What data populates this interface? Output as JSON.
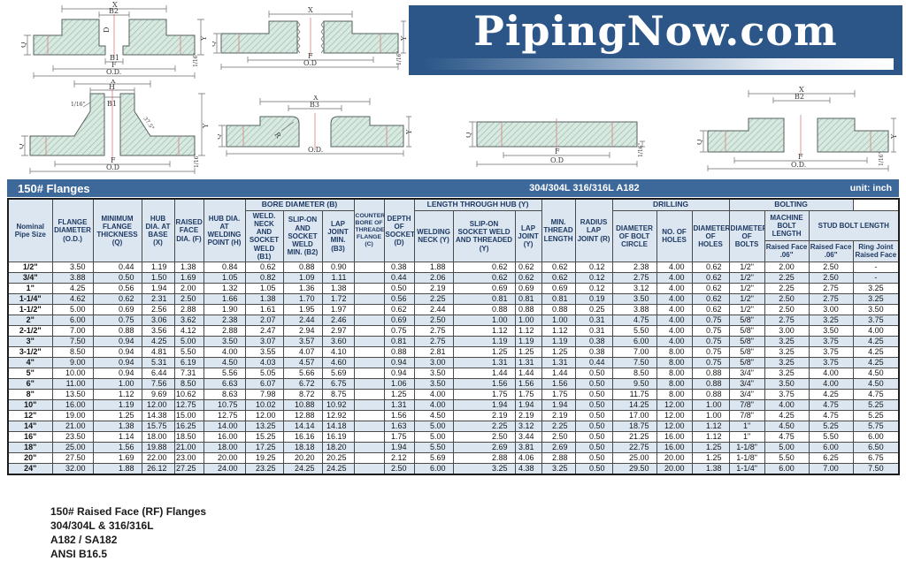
{
  "banner": {
    "text": "PipingNow.com"
  },
  "section_bar": {
    "title": "150# Flanges",
    "material": "304/304L  316/316L  A182",
    "unit": "unit: inch"
  },
  "drawings": {
    "socket_weld": {
      "labels": [
        "X",
        "B2",
        "D",
        "Q",
        "B1",
        "F",
        "O.D.",
        "Y",
        "1/16\""
      ]
    },
    "threaded": {
      "labels": [
        "Q",
        "X",
        "F",
        "O.D",
        "Y",
        "1/16\""
      ]
    },
    "weld_neck": {
      "labels": [
        "X",
        "H",
        "B1",
        "1/16\"",
        "37.5°",
        "Q",
        "F",
        "O.D",
        "Y",
        "1/16\""
      ]
    },
    "lap_joint": {
      "labels": [
        "X",
        "B3",
        "Q",
        "R",
        "O.D.",
        "Y"
      ]
    },
    "blind": {
      "labels": [
        "Q",
        "F",
        "O.D",
        "1/16\""
      ]
    },
    "slip_on": {
      "labels": [
        "X",
        "B2",
        "Q",
        "F",
        "O.D.",
        "Y",
        "1/16\""
      ]
    }
  },
  "table": {
    "h": {
      "nps": "Nominal Pipe Size",
      "od": "FLANGE DIAMETER (O.D.)",
      "q": "MINIMUM FLANGE THICKNESS (Q)",
      "x": "HUB DIA. AT BASE (X)",
      "f": "RAISED FACE DIA. (F)",
      "hh": "HUB DIA. AT WELDING POINT (H)",
      "bore_group": "BORE DIAMETER (B)",
      "b1": "WELD. NECK AND SOCKET WELD (B1)",
      "b2": "SLIP-ON AND SOCKET WELD MIN. (B2)",
      "b3": "LAP JOINT MIN. (B3)",
      "c": "COUNTER BORE OF THREADED FLANGE (C)",
      "d": "DEPTH OF SOCKET (D)",
      "hub_group": "LENGTH THROUGH HUB (Y)",
      "ywn": "WELDING NECK (Y)",
      "yso": "SLIP-ON SOCKET WELD AND THREADED (Y)",
      "ylj": "LAP JOINT (Y)",
      "mtl": "MIN. THREAD LENGTH",
      "r": "RADIUS LAP JOINT (R)",
      "drilling_group": "DRILLING",
      "bc": "DIAMETER OF BOLT CIRCLE",
      "nh": "NO. OF HOLES",
      "dh": "DIAMETER OF HOLES",
      "bolting_group": "BOLTING",
      "db": "DIAMETER OF BOLTS",
      "mbl": "MACHINE BOLT LENGTH",
      "sbl": "STUD BOLT LENGTH",
      "mbl_rf": "Raised Face .06\"",
      "sbl_rf": "Raised Face .06\"",
      "sbl_rj": "Ring Joint Raised Face"
    },
    "rows": [
      [
        "1/2\"",
        "3.50",
        "0.44",
        "1.19",
        "1.38",
        "0.84",
        "0.62",
        "0.88",
        "0.90",
        "",
        "0.38",
        "1.88",
        "0.62",
        "0.62",
        "0.62",
        "0.12",
        "2.38",
        "4.00",
        "0.62",
        "1/2\"",
        "2.00",
        "2.50",
        "-"
      ],
      [
        "3/4\"",
        "3.88",
        "0.50",
        "1.50",
        "1.69",
        "1.05",
        "0.82",
        "1.09",
        "1.11",
        "",
        "0.44",
        "2.06",
        "0.62",
        "0.62",
        "0.62",
        "0.12",
        "2.75",
        "4.00",
        "0.62",
        "1/2\"",
        "2.25",
        "2.50",
        "-"
      ],
      [
        "1\"",
        "4.25",
        "0.56",
        "1.94",
        "2.00",
        "1.32",
        "1.05",
        "1.36",
        "1.38",
        "",
        "0.50",
        "2.19",
        "0.69",
        "0.69",
        "0.69",
        "0.12",
        "3.12",
        "4.00",
        "0.62",
        "1/2\"",
        "2.25",
        "2.75",
        "3.25"
      ],
      [
        "1-1/4\"",
        "4.62",
        "0.62",
        "2.31",
        "2.50",
        "1.66",
        "1.38",
        "1.70",
        "1.72",
        "",
        "0.56",
        "2.25",
        "0.81",
        "0.81",
        "0.81",
        "0.19",
        "3.50",
        "4.00",
        "0.62",
        "1/2\"",
        "2.50",
        "2.75",
        "3.25"
      ],
      [
        "1-1/2\"",
        "5.00",
        "0.69",
        "2.56",
        "2.88",
        "1.90",
        "1.61",
        "1.95",
        "1.97",
        "",
        "0.62",
        "2.44",
        "0.88",
        "0.88",
        "0.88",
        "0.25",
        "3.88",
        "4.00",
        "0.62",
        "1/2\"",
        "2.50",
        "3.00",
        "3.50"
      ],
      [
        "2\"",
        "6.00",
        "0.75",
        "3.06",
        "3.62",
        "2.38",
        "2.07",
        "2.44",
        "2.46",
        "",
        "0.69",
        "2.50",
        "1.00",
        "1.00",
        "1.00",
        "0.31",
        "4.75",
        "4.00",
        "0.75",
        "5/8\"",
        "2.75",
        "3.25",
        "3.75"
      ],
      [
        "2-1/2\"",
        "7.00",
        "0.88",
        "3.56",
        "4.12",
        "2.88",
        "2.47",
        "2.94",
        "2.97",
        "",
        "0.75",
        "2.75",
        "1.12",
        "1.12",
        "1.12",
        "0.31",
        "5.50",
        "4.00",
        "0.75",
        "5/8\"",
        "3.00",
        "3.50",
        "4.00"
      ],
      [
        "3\"",
        "7.50",
        "0.94",
        "4.25",
        "5.00",
        "3.50",
        "3.07",
        "3.57",
        "3.60",
        "",
        "0.81",
        "2.75",
        "1.19",
        "1.19",
        "1.19",
        "0.38",
        "6.00",
        "4.00",
        "0.75",
        "5/8\"",
        "3.25",
        "3.75",
        "4.25"
      ],
      [
        "3-1/2\"",
        "8.50",
        "0.94",
        "4.81",
        "5.50",
        "4.00",
        "3.55",
        "4.07",
        "4.10",
        "",
        "0.88",
        "2.81",
        "1.25",
        "1.25",
        "1.25",
        "0.38",
        "7.00",
        "8.00",
        "0.75",
        "5/8\"",
        "3.25",
        "3.75",
        "4.25"
      ],
      [
        "4\"",
        "9.00",
        "0.94",
        "5.31",
        "6.19",
        "4.50",
        "4.03",
        "4.57",
        "4.60",
        "",
        "0.94",
        "3.00",
        "1.31",
        "1.31",
        "1.31",
        "0.44",
        "7.50",
        "8.00",
        "0.75",
        "5/8\"",
        "3.25",
        "3.75",
        "4.25"
      ],
      [
        "5\"",
        "10.00",
        "0.94",
        "6.44",
        "7.31",
        "5.56",
        "5.05",
        "5.66",
        "5.69",
        "",
        "0.94",
        "3.50",
        "1.44",
        "1.44",
        "1.44",
        "0.50",
        "8.50",
        "8.00",
        "0.88",
        "3/4\"",
        "3.25",
        "4.00",
        "4.50"
      ],
      [
        "6\"",
        "11.00",
        "1.00",
        "7.56",
        "8.50",
        "6.63",
        "6.07",
        "6.72",
        "6.75",
        "",
        "1.06",
        "3.50",
        "1.56",
        "1.56",
        "1.56",
        "0.50",
        "9.50",
        "8.00",
        "0.88",
        "3/4\"",
        "3.50",
        "4.00",
        "4.50"
      ],
      [
        "8\"",
        "13.50",
        "1.12",
        "9.69",
        "10.62",
        "8.63",
        "7.98",
        "8.72",
        "8.75",
        "",
        "1.25",
        "4.00",
        "1.75",
        "1.75",
        "1.75",
        "0.50",
        "11.75",
        "8.00",
        "0.88",
        "3/4\"",
        "3.75",
        "4.25",
        "4.75"
      ],
      [
        "10\"",
        "16.00",
        "1.19",
        "12.00",
        "12.75",
        "10.75",
        "10.02",
        "10.88",
        "10.92",
        "",
        "1.31",
        "4.00",
        "1.94",
        "1.94",
        "1.94",
        "0.50",
        "14.25",
        "12.00",
        "1.00",
        "7/8\"",
        "4.00",
        "4.75",
        "5.25"
      ],
      [
        "12\"",
        "19.00",
        "1.25",
        "14.38",
        "15.00",
        "12.75",
        "12.00",
        "12.88",
        "12.92",
        "",
        "1.56",
        "4.50",
        "2.19",
        "2.19",
        "2.19",
        "0.50",
        "17.00",
        "12.00",
        "1.00",
        "7/8\"",
        "4.25",
        "4.75",
        "5.25"
      ],
      [
        "14\"",
        "21.00",
        "1.38",
        "15.75",
        "16.25",
        "14.00",
        "13.25",
        "14.14",
        "14.18",
        "",
        "1.63",
        "5.00",
        "2.25",
        "3.12",
        "2.25",
        "0.50",
        "18.75",
        "12.00",
        "1.12",
        "1\"",
        "4.50",
        "5.25",
        "5.75"
      ],
      [
        "16\"",
        "23.50",
        "1.14",
        "18.00",
        "18.50",
        "16.00",
        "15.25",
        "16.16",
        "16.19",
        "",
        "1.75",
        "5.00",
        "2.50",
        "3.44",
        "2.50",
        "0.50",
        "21.25",
        "16.00",
        "1.12",
        "1\"",
        "4.75",
        "5.50",
        "6.00"
      ],
      [
        "18\"",
        "25.00",
        "1.56",
        "19.88",
        "21.00",
        "18.00",
        "17.25",
        "18.18",
        "18.20",
        "",
        "1.94",
        "5.50",
        "2.69",
        "3.81",
        "2.69",
        "0.50",
        "22.75",
        "16.00",
        "1.25",
        "1-1/8\"",
        "5.00",
        "6.00",
        "6.50"
      ],
      [
        "20\"",
        "27.50",
        "1.69",
        "22.00",
        "23.00",
        "20.00",
        "19.25",
        "20.20",
        "20.25",
        "",
        "2.12",
        "5.69",
        "2.88",
        "4.06",
        "2.88",
        "0.50",
        "25.00",
        "20.00",
        "1.25",
        "1-1/8\"",
        "5.50",
        "6.25",
        "6.75"
      ],
      [
        "24\"",
        "32.00",
        "1.88",
        "26.12",
        "27.25",
        "24.00",
        "23.25",
        "24.25",
        "24.25",
        "",
        "2.50",
        "6.00",
        "3.25",
        "4.38",
        "3.25",
        "0.50",
        "29.50",
        "20.00",
        "1.38",
        "1-1/4\"",
        "6.00",
        "7.00",
        "7.50"
      ]
    ]
  },
  "footer": {
    "lines": [
      "150# Raised Face (RF) Flanges",
      "304/304L & 316/316L",
      "A182 / SA182",
      "ANSI B16.5"
    ]
  }
}
